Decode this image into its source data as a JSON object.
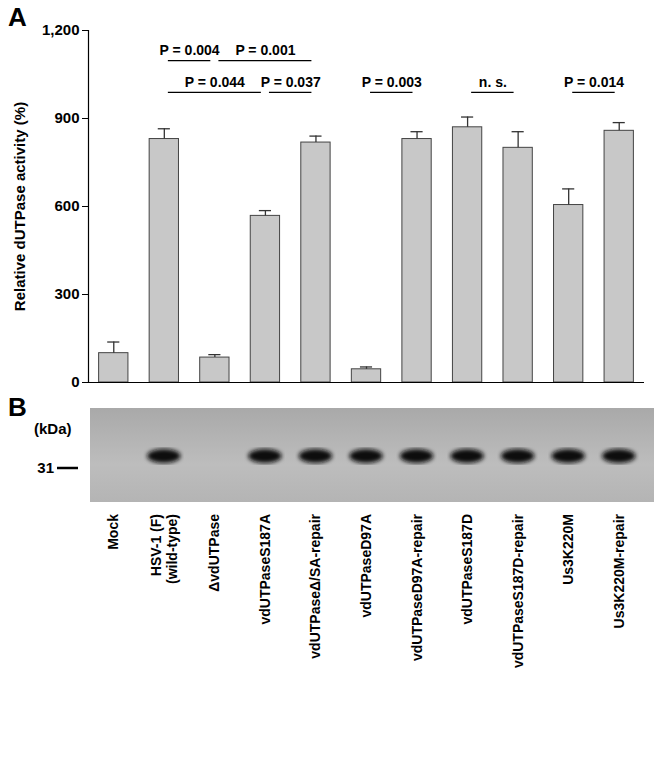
{
  "chart_data": {
    "type": "bar",
    "panel_label": "A",
    "y_label": "Relative dUTPase activity (%)",
    "categories": [
      "Mock",
      "HSV-1 (F)\n(wild-type)",
      "ΔvdUTPase",
      "vdUTPaseS187A",
      "vdUTPaseΔ/SA-repair",
      "vdUTPaseD97A",
      "vdUTPaseD97A-repair",
      "vdUTPaseS187D",
      "vdUTPaseS187D-repair",
      "Us3K220M",
      "Us3K220M-repair"
    ],
    "values": [
      100,
      830,
      85,
      568,
      818,
      45,
      830,
      870,
      800,
      605,
      858
    ],
    "errors": [
      38,
      35,
      10,
      18,
      22,
      8,
      25,
      35,
      55,
      55,
      28
    ],
    "color": "#c8c8c8",
    "ylim": [
      0,
      1200
    ],
    "yticks": [
      0,
      300,
      600,
      900,
      {
        "value": 1200,
        "label": "1,200"
      }
    ],
    "tick_labels": "y",
    "annotations": [
      {
        "from": "HSV-1 (F)\n(wild-type)",
        "to": "vdUTPaseS187A",
        "label": "P = 0.044"
      },
      {
        "from": "vdUTPaseS187A",
        "to": "vdUTPaseΔ/SA-repair",
        "label": "P = 0.037"
      },
      {
        "from": "vdUTPaseD97A",
        "to": "vdUTPaseD97A-repair",
        "label": "P = 0.003"
      },
      {
        "from": "vdUTPaseS187D",
        "to": "vdUTPaseS187D-repair",
        "label": "n. s."
      },
      {
        "from": "Us3K220M",
        "to": "Us3K220M-repair",
        "label": "P = 0.014"
      },
      {
        "from": "HSV-1 (F)\n(wild-type)",
        "to": "ΔvdUTPase",
        "label": "P = 0.004"
      },
      {
        "from": "ΔvdUTPase",
        "to": "vdUTPaseΔ/SA-repair",
        "label": "P = 0.001"
      }
    ]
  },
  "panel_b": {
    "panel_label": "B",
    "unit_label": "(kDa)",
    "marker": 31,
    "band_detected": [
      false,
      true,
      false,
      true,
      true,
      true,
      true,
      true,
      true,
      true,
      true
    ]
  }
}
